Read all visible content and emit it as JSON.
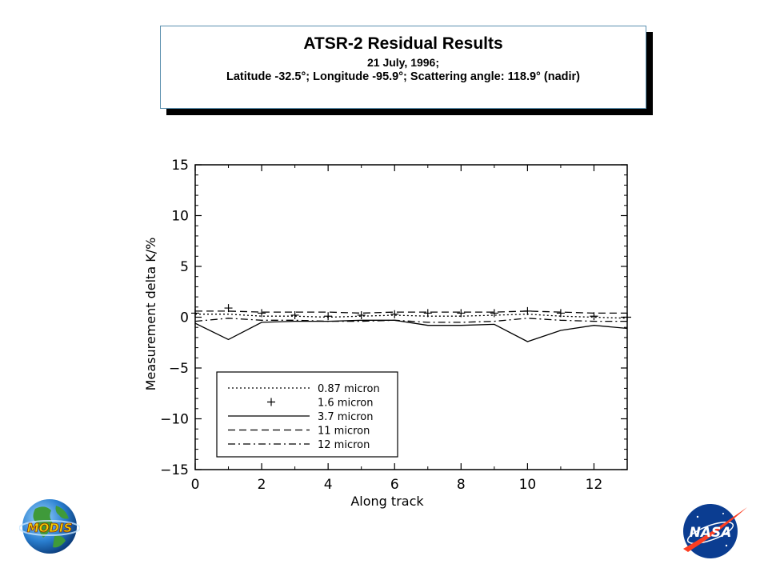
{
  "header": {
    "title": "ATSR-2 Residual Results",
    "date": "21 July, 1996;",
    "location": "Latitude -32.5°; Longitude -95.9°; Scattering angle: 118.9° (nadir)"
  },
  "logos": {
    "left": "MODIS",
    "right": "NASA"
  },
  "chart_data": {
    "type": "line",
    "xlabel": "Along track",
    "ylabel": "Measurement delta K/%",
    "xlim": [
      0,
      13
    ],
    "ylim": [
      -15,
      15
    ],
    "xticks": [
      0,
      2,
      4,
      6,
      8,
      10,
      12
    ],
    "yticks": [
      15,
      10,
      5,
      0,
      -5,
      -10,
      -15
    ],
    "grid": false,
    "legend_position": "bottom-left",
    "x": [
      0,
      1,
      2,
      3,
      4,
      5,
      6,
      7,
      8,
      9,
      10,
      11,
      12,
      13
    ],
    "series": [
      {
        "name": "0.87 micron",
        "style": "dotted",
        "values": [
          0.3,
          0.3,
          0.1,
          0.1,
          0.0,
          0.1,
          0.2,
          0.1,
          0.1,
          0.2,
          0.3,
          0.1,
          0.0,
          -0.1
        ]
      },
      {
        "name": "1.6 micron",
        "style": "plus",
        "values": [
          0.4,
          0.9,
          0.4,
          0.2,
          0.1,
          0.2,
          0.3,
          0.4,
          0.4,
          0.4,
          0.6,
          0.4,
          0.1,
          0.0
        ]
      },
      {
        "name": "3.7 micron",
        "style": "solid",
        "values": [
          -0.6,
          -2.2,
          -0.5,
          -0.4,
          -0.4,
          -0.3,
          -0.3,
          -0.8,
          -0.8,
          -0.7,
          -2.4,
          -1.3,
          -0.8,
          -1.1
        ]
      },
      {
        "name": "11 micron",
        "style": "dashed",
        "values": [
          0.6,
          0.6,
          0.5,
          0.5,
          0.5,
          0.4,
          0.5,
          0.5,
          0.5,
          0.5,
          0.6,
          0.5,
          0.4,
          0.4
        ]
      },
      {
        "name": "12 micron",
        "style": "dashdot",
        "values": [
          -0.4,
          -0.1,
          -0.3,
          -0.3,
          -0.4,
          -0.4,
          -0.3,
          -0.5,
          -0.5,
          -0.4,
          -0.1,
          -0.3,
          -0.4,
          -0.4
        ]
      }
    ]
  }
}
